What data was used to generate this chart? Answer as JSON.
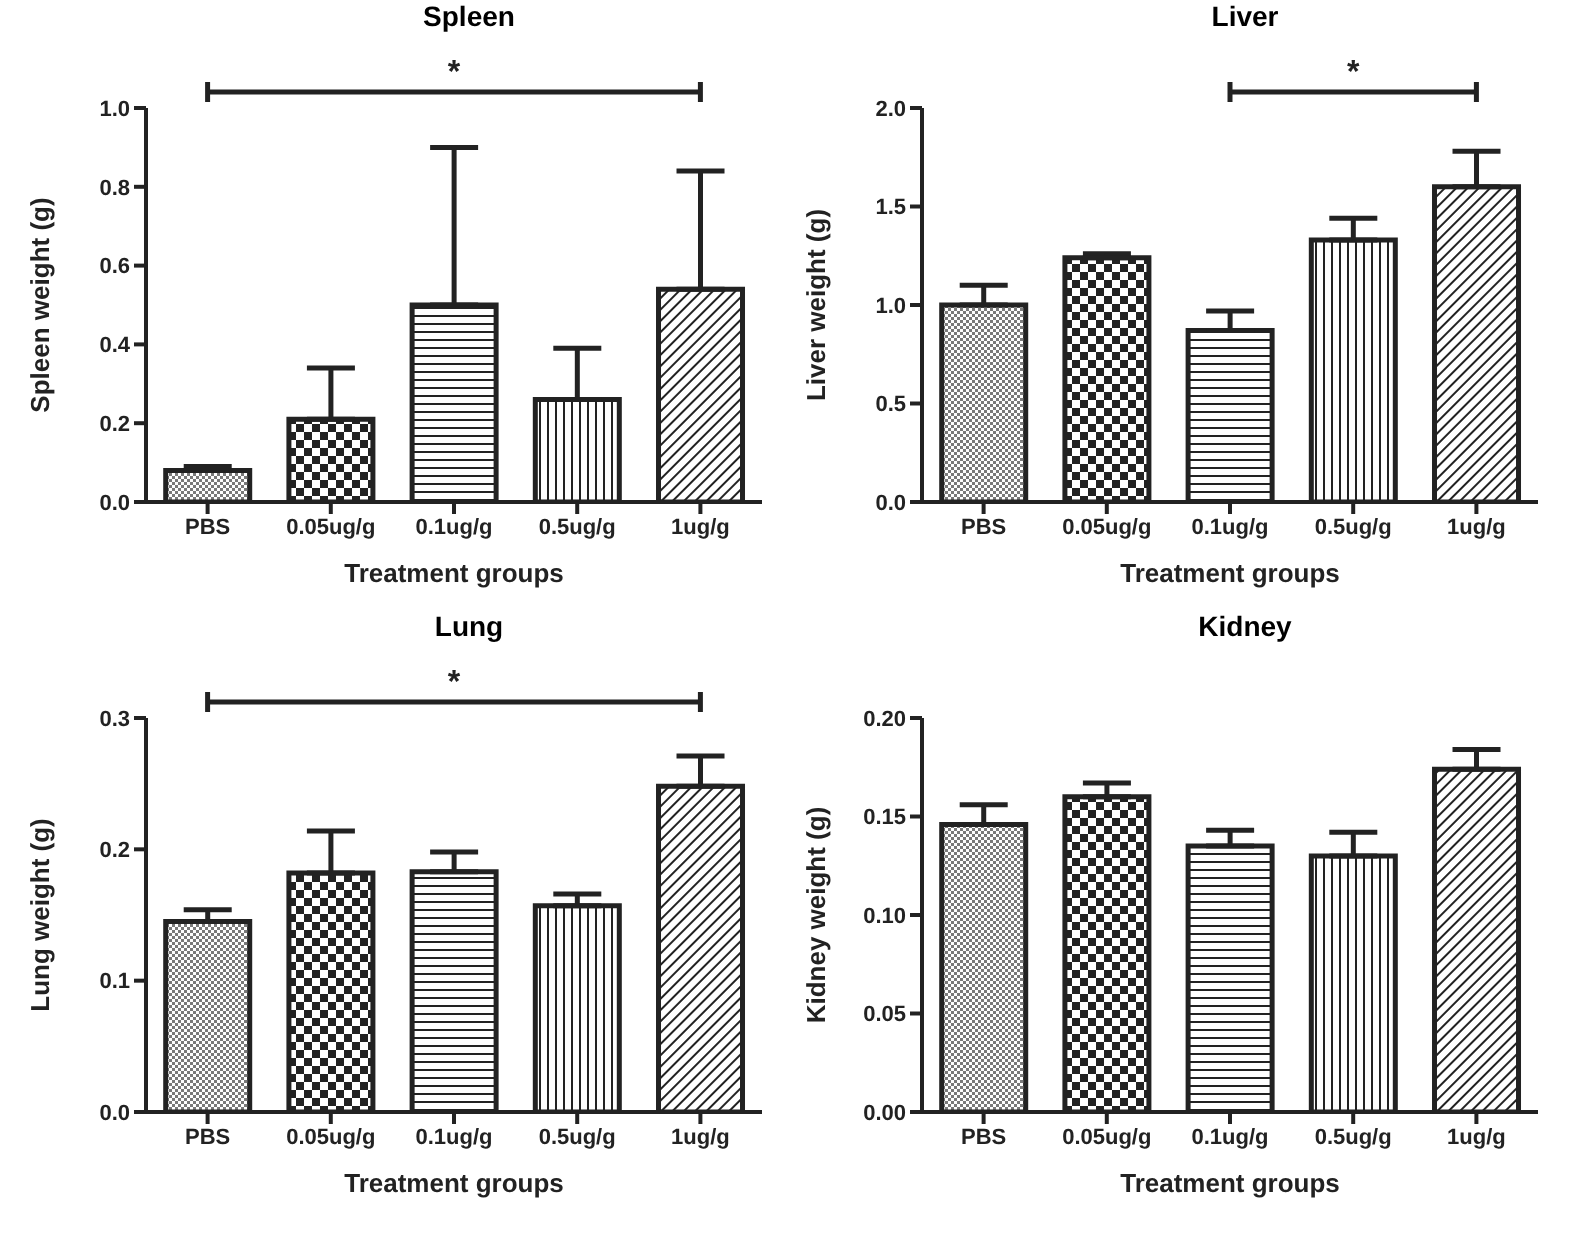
{
  "chart_data": [
    {
      "type": "bar",
      "title": "Spleen",
      "xlabel": "Treatment groups",
      "ylabel": "Spleen weight (g)",
      "categories": [
        "PBS",
        "0.05ug/g",
        "0.1ug/g",
        "0.5ug/g",
        "1ug/g"
      ],
      "values": [
        0.08,
        0.21,
        0.5,
        0.26,
        0.54
      ],
      "errors": [
        [
          0.08,
          0.09
        ],
        [
          0.21,
          0.34
        ],
        [
          0.5,
          0.9
        ],
        [
          0.26,
          0.39
        ],
        [
          0.54,
          0.84
        ]
      ],
      "color": "#222222",
      "ylim": [
        0,
        1
      ],
      "yticks": [
        {
          "value": 0,
          "label": "0.0"
        },
        0.2,
        0.4,
        0.6,
        0.8,
        {
          "value": 1,
          "label": "1.0"
        }
      ],
      "grid": false,
      "legend": false,
      "annotations": [
        "*"
      ]
    },
    {
      "type": "bar",
      "title": "Liver",
      "xlabel": "Treatment groups",
      "ylabel": "Liver weight (g)",
      "categories": [
        "PBS",
        "0.05ug/g",
        "0.1ug/g",
        "0.5ug/g",
        "1ug/g"
      ],
      "values": [
        1.0,
        1.24,
        0.87,
        1.33,
        1.6
      ],
      "errors": [
        [
          1.0,
          1.1
        ],
        [
          1.24,
          1.26
        ],
        [
          0.87,
          0.97
        ],
        [
          1.33,
          1.44
        ],
        [
          1.6,
          1.78
        ]
      ],
      "color": "#222222",
      "ylim": [
        0,
        2
      ],
      "yticks": [
        {
          "value": 0,
          "label": "0.0"
        },
        0.5,
        {
          "value": 1,
          "label": "1.0"
        },
        1.5,
        {
          "value": 2,
          "label": "2.0"
        }
      ],
      "grid": false,
      "legend": false,
      "annotations": [
        "*"
      ]
    },
    {
      "type": "bar",
      "title": "Lung",
      "xlabel": "Treatment groups",
      "ylabel": "Lung weight (g)",
      "categories": [
        "PBS",
        "0.05ug/g",
        "0.1ug/g",
        "0.5ug/g",
        "1ug/g"
      ],
      "values": [
        0.145,
        0.182,
        0.183,
        0.157,
        0.248
      ],
      "errors": [
        [
          0.145,
          0.154
        ],
        [
          0.182,
          0.214
        ],
        [
          0.183,
          0.198
        ],
        [
          0.157,
          0.166
        ],
        [
          0.248,
          0.271
        ]
      ],
      "color": "#222222",
      "ylim": [
        0,
        0.3
      ],
      "yticks": [
        {
          "value": 0,
          "label": "0.0"
        },
        0.1,
        0.2,
        0.3
      ],
      "grid": false,
      "legend": false,
      "annotations": [
        "*"
      ]
    },
    {
      "type": "bar",
      "title": "Kidney",
      "xlabel": "Treatment groups",
      "ylabel": "Kidney weight (g)",
      "categories": [
        "PBS",
        "0.05ug/g",
        "0.1ug/g",
        "0.5ug/g",
        "1ug/g"
      ],
      "values": [
        0.146,
        0.16,
        0.135,
        0.13,
        0.174
      ],
      "errors": [
        [
          0.146,
          0.156
        ],
        [
          0.16,
          0.167
        ],
        [
          0.135,
          0.143
        ],
        [
          0.13,
          0.142
        ],
        [
          0.174,
          0.184
        ]
      ],
      "color": "#222222",
      "ylim": [
        0,
        0.2
      ],
      "yticks": [
        {
          "value": 0,
          "label": "0.00"
        },
        0.05,
        {
          "value": 0.1,
          "label": "0.10"
        },
        0.15,
        {
          "value": 0.2,
          "label": "0.20"
        }
      ],
      "grid": false,
      "legend": false
    }
  ]
}
